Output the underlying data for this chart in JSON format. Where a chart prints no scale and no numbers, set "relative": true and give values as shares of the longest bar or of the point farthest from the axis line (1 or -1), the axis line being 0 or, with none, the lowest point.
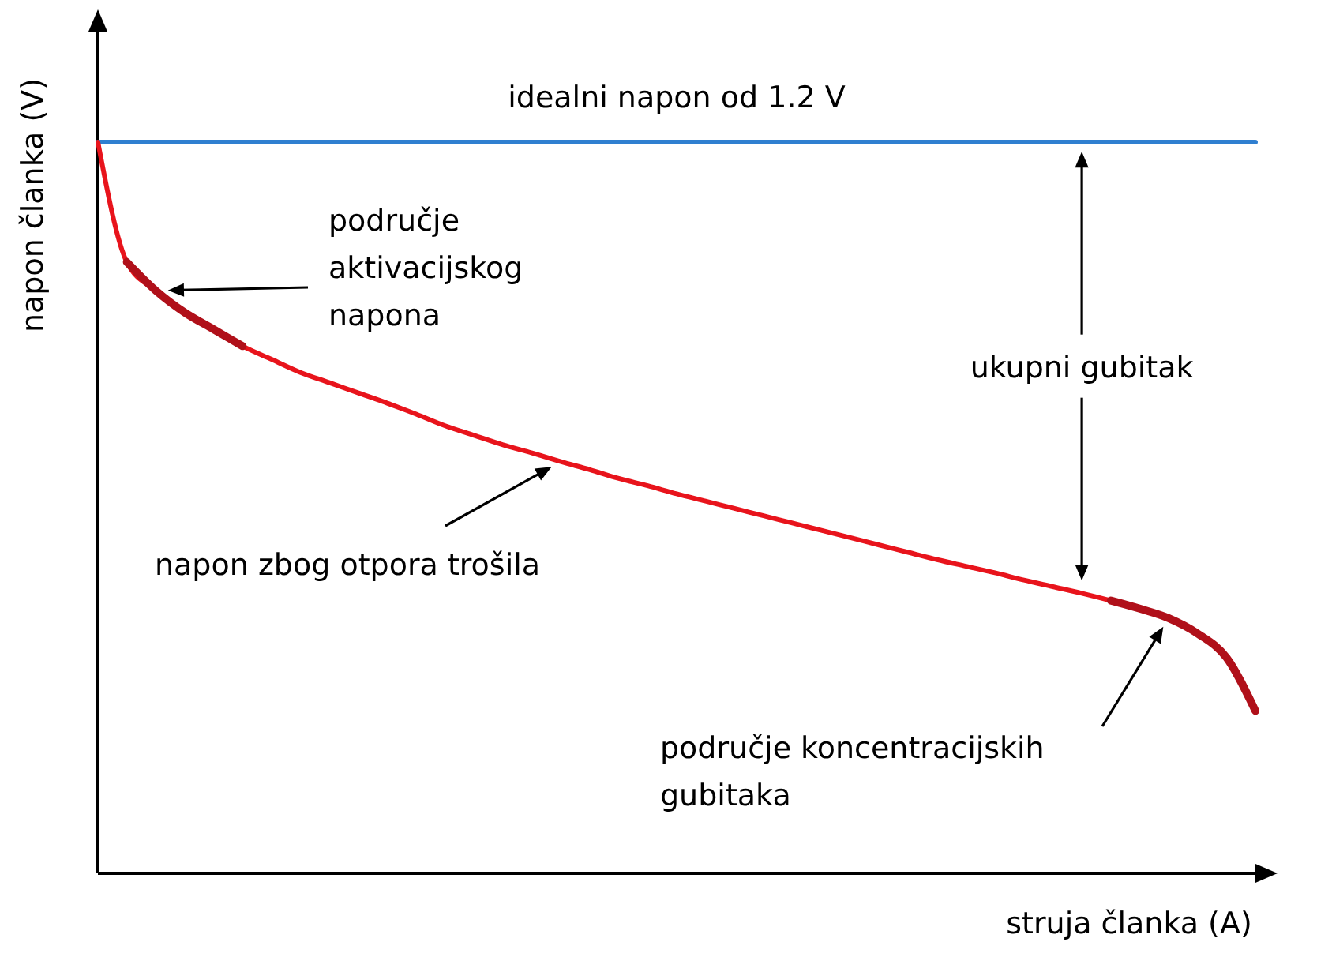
{
  "chart_data": {
    "type": "line",
    "relative": true,
    "xlabel": "struja članka (A)",
    "ylabel": "napon članka (V)",
    "categories": [
      null,
      null,
      null,
      null,
      null,
      null,
      null,
      null,
      null,
      null,
      null,
      null,
      null,
      null,
      null,
      null,
      null,
      null,
      null,
      null,
      null,
      null,
      null,
      null,
      null,
      null,
      null,
      null,
      null,
      null,
      null,
      null,
      null,
      null,
      null,
      null,
      null,
      null,
      null,
      null,
      null
    ],
    "series": [
      {
        "name": "idealni napon od 1.2 V",
        "color": "#2f7fd0",
        "values": [
          1,
          1,
          1,
          1,
          1,
          1,
          1,
          1,
          1,
          1,
          1,
          1,
          1,
          1,
          1,
          1,
          1,
          1,
          1,
          1,
          1,
          1,
          1,
          1,
          1,
          1,
          1,
          1,
          1,
          1,
          1,
          1,
          1,
          1,
          1,
          1,
          1,
          1,
          1,
          1,
          1
        ]
      },
      {
        "color": "#e8141c",
        "values": [
          1,
          0.836,
          0.797,
          0.767,
          0.744,
          0.721,
          0.703,
          0.685,
          0.671,
          0.657,
          0.643,
          0.628,
          0.612,
          0.599,
          0.586,
          0.575,
          0.563,
          0.552,
          0.54,
          0.53,
          0.519,
          0.509,
          0.499,
          0.489,
          0.479,
          0.469,
          0.459,
          0.449,
          0.439,
          0.429,
          0.42,
          0.411,
          0.401,
          0.392,
          0.383,
          0.373,
          0.362,
          0.349,
          0.328,
          0.295,
          0.222
        ]
      },
      {
        "color": "#b0101a",
        "values": [
          null,
          0.836,
          0.797,
          0.767,
          0.744,
          0.721,
          null,
          null,
          null,
          null,
          null,
          null,
          null,
          null,
          null,
          null,
          null,
          null,
          null,
          null,
          null,
          null,
          null,
          null,
          null,
          null,
          null,
          null,
          null,
          null,
          null,
          null,
          null,
          null,
          null,
          null,
          null,
          null,
          null,
          null,
          null
        ]
      },
      {
        "color": "#b0101a",
        "values": [
          null,
          null,
          null,
          null,
          null,
          null,
          null,
          null,
          null,
          null,
          null,
          null,
          null,
          null,
          null,
          null,
          null,
          null,
          null,
          null,
          null,
          null,
          null,
          null,
          null,
          null,
          null,
          null,
          null,
          null,
          null,
          null,
          null,
          null,
          null,
          0.373,
          0.362,
          0.349,
          0.328,
          0.295,
          0.222
        ]
      }
    ],
    "annotations": [
      "područje\naktivacijskog\nnapona",
      "napon zbog otpora trošila",
      "područje koncentracijskih\ngubitaka",
      "ukupni gubitak"
    ]
  }
}
